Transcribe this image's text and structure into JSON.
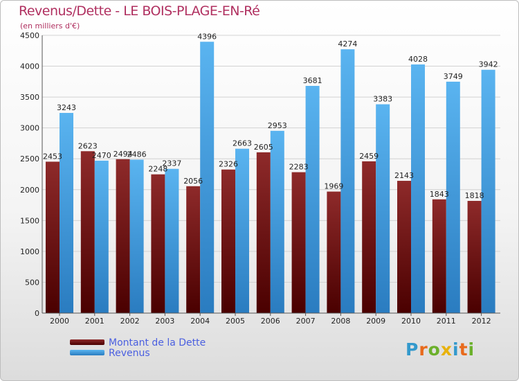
{
  "title": "Revenus/Dette - LE BOIS-PLAGE-EN-Ré",
  "subtitle": "(en milliers d'€)",
  "logo": {
    "letters": [
      "P",
      "r",
      "o",
      "x",
      "i",
      "t",
      "i"
    ],
    "colors": [
      "#3399cc",
      "#e86a1c",
      "#6bb02b",
      "#e8b20c",
      "#3399cc",
      "#e86a1c",
      "#6bb02b"
    ]
  },
  "colors": {
    "dette": "#7a1a1a",
    "revenus": "#3a9ce0",
    "title": "#b03060",
    "legend_text": "#4a5fe0"
  },
  "chart_data": {
    "type": "bar",
    "title": "Revenus/Dette - LE BOIS-PLAGE-EN-Ré",
    "subtitle": "(en milliers d'€)",
    "xlabel": "",
    "ylabel": "",
    "categories": [
      "2000",
      "2001",
      "2002",
      "2003",
      "2004",
      "2005",
      "2006",
      "2007",
      "2008",
      "2009",
      "2010",
      "2011",
      "2012"
    ],
    "ylim": [
      0,
      4500
    ],
    "yticks": [
      0,
      500,
      1000,
      1500,
      2000,
      2500,
      3000,
      3500,
      4000,
      4500
    ],
    "grid": true,
    "legend_position": "bottom-left",
    "series": [
      {
        "name": "Montant de la Dette",
        "labels": [
          "2453",
          "2623",
          "2494",
          "2248",
          "2056",
          "2326",
          "2605",
          "2283",
          "1969",
          "2459",
          "2143",
          "1843",
          "1818"
        ],
        "values": [
          2453,
          2623,
          2494,
          2248,
          2056,
          2326,
          2605,
          2283,
          1969,
          2459,
          2143,
          1843,
          1818
        ]
      },
      {
        "name": "Revenus",
        "labels": [
          "3243",
          "2470",
          "2486",
          "2337",
          "4396",
          "2663",
          "2953",
          "3681",
          "4274",
          "3383",
          "4028",
          "3749",
          "3942"
        ],
        "values": [
          3243,
          2470,
          2486,
          2337,
          4396,
          2663,
          2953,
          3681,
          4274,
          3383,
          4028,
          3749,
          3942
        ]
      }
    ]
  }
}
